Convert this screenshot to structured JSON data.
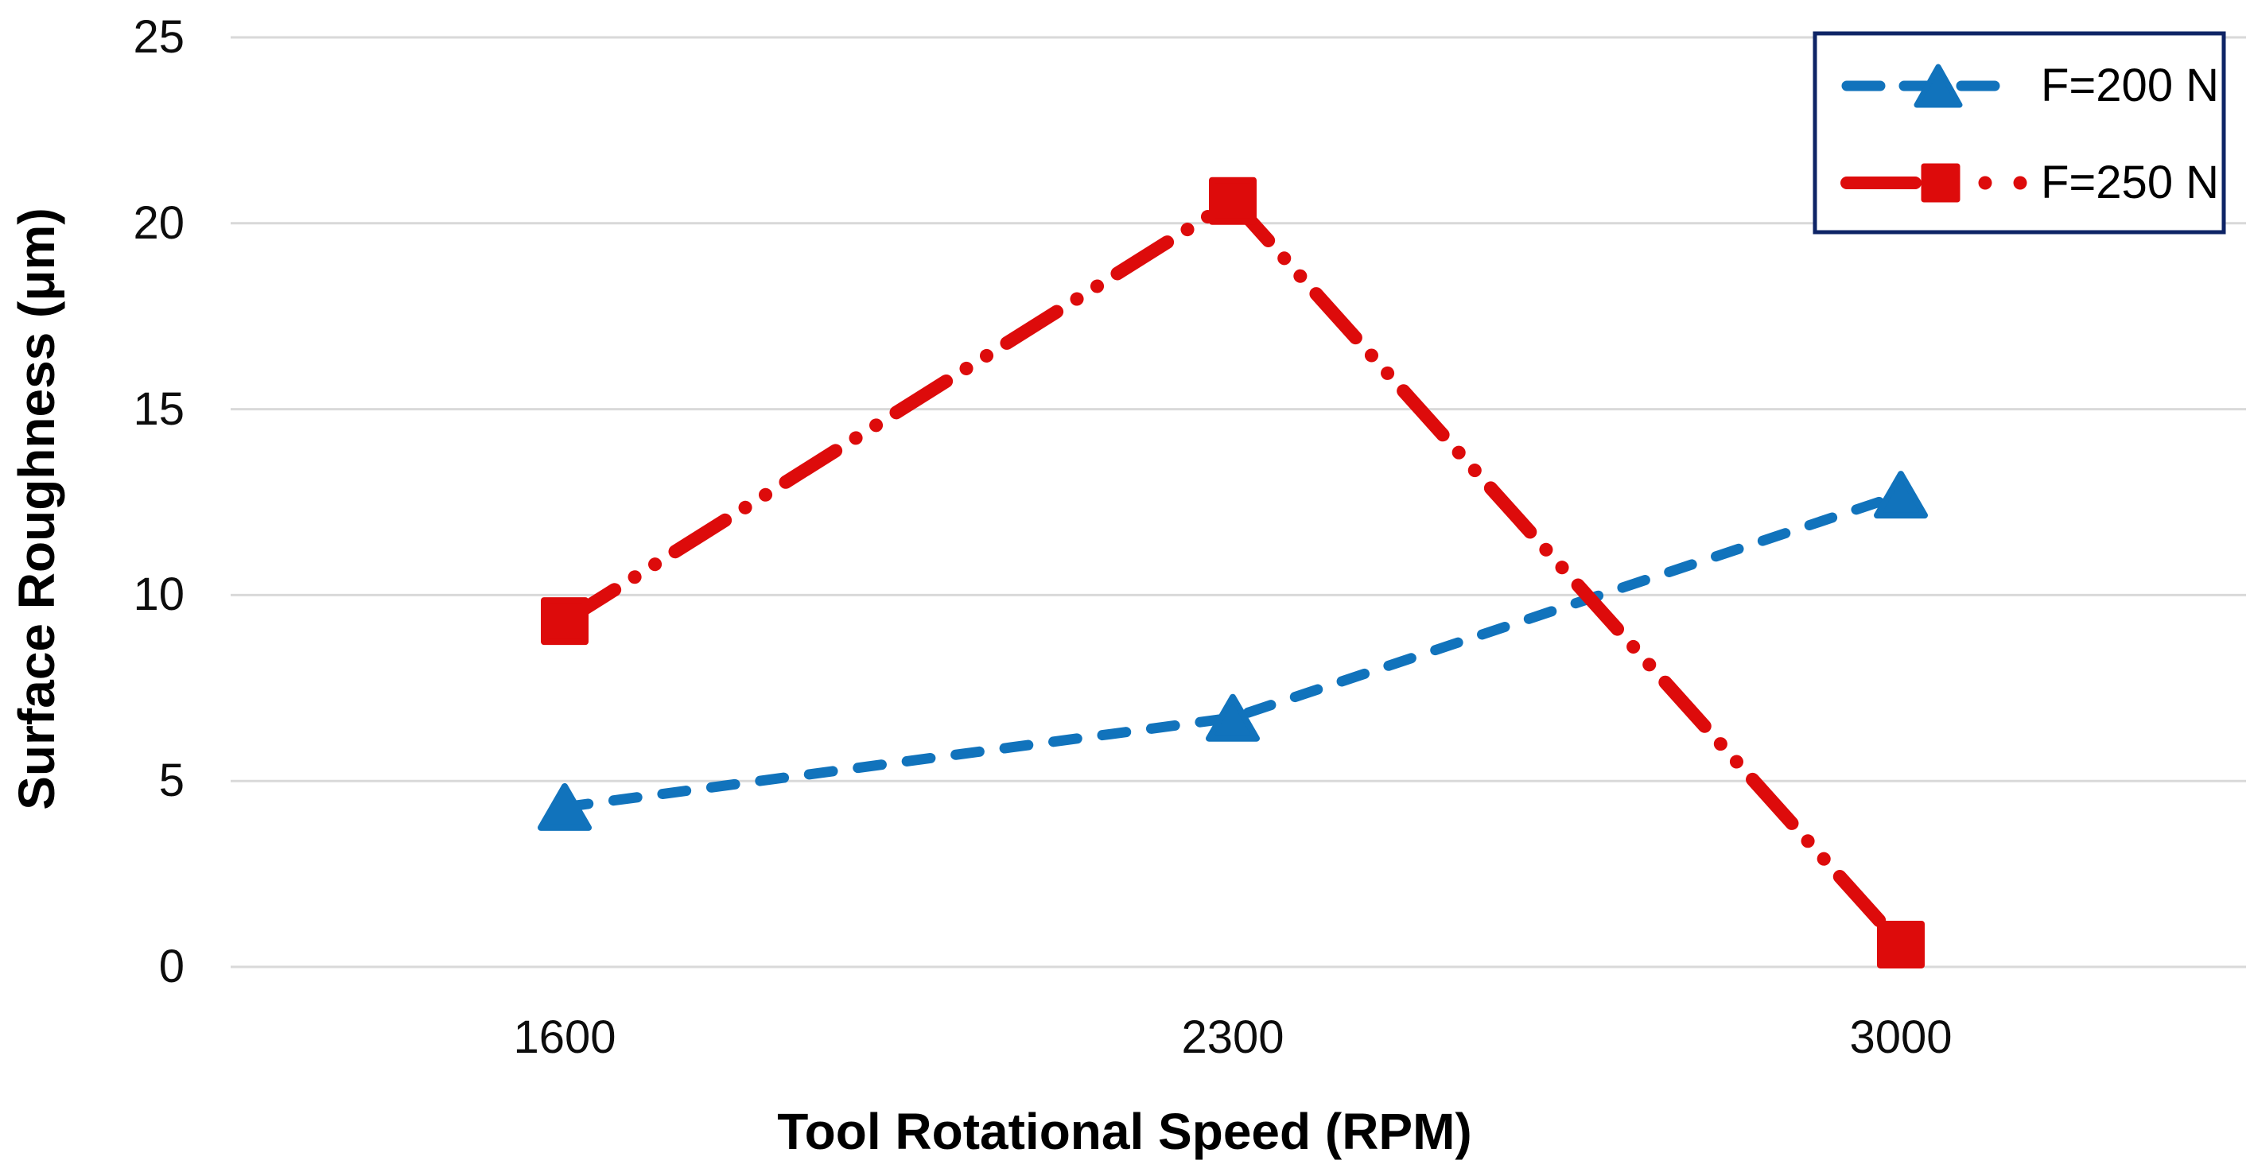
{
  "chart_data": {
    "type": "line",
    "title": "",
    "xlabel": "Tool Rotational Speed (RPM)",
    "ylabel": "Surface Roughness (μm)",
    "categories": [
      "1600",
      "2300",
      "3000"
    ],
    "y_ticks": [
      "0",
      "5",
      "10",
      "15",
      "20",
      "25"
    ],
    "ylim": [
      0,
      25
    ],
    "grid": "horizontal-gridlines-only",
    "legend_position": "top-right",
    "series": [
      {
        "name": "F=200 N",
        "values": [
          4.3,
          6.7,
          12.7
        ],
        "color": "#1173BC",
        "marker": "triangle",
        "line_style": "dashed"
      },
      {
        "name": "F=250 N",
        "values": [
          9.3,
          20.6,
          0.6
        ],
        "color": "#DD0B0B",
        "marker": "square",
        "line_style": "long-dash-dot-dot"
      }
    ]
  },
  "colors": {
    "background": "#FFFFFF",
    "gridline": "#D9D9D9",
    "tick_text": "#0D0D0D",
    "axis_title_text": "#000000",
    "legend_border": "#0E2466",
    "legend_background": "#FFFFFF",
    "legend_text": "#000000"
  }
}
